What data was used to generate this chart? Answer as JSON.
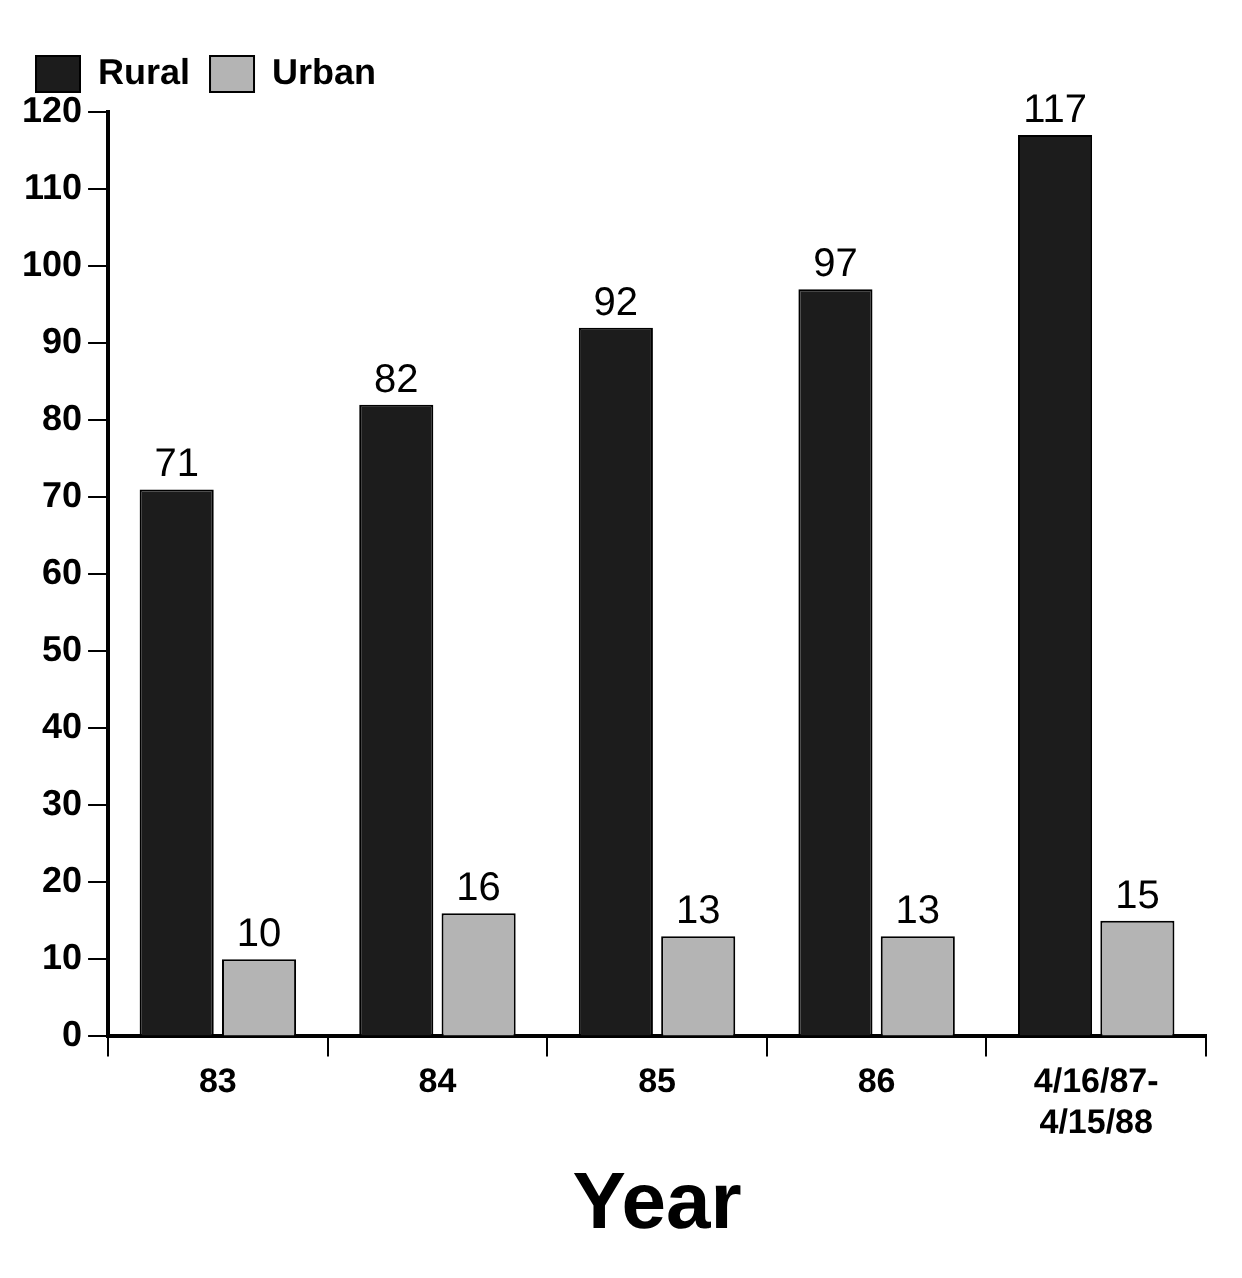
{
  "chart_data": {
    "type": "bar",
    "xlabel": "Year",
    "categories": [
      "83",
      "84",
      "85",
      "86",
      "4/16/87-\n4/15/88"
    ],
    "series": [
      {
        "name": "Rural",
        "color": "#1c1c1c",
        "values": [
          71,
          82,
          92,
          97,
          117
        ]
      },
      {
        "name": "Urban",
        "color": "#b4b4b4",
        "values": [
          10,
          16,
          13,
          13,
          15
        ]
      }
    ],
    "ylim": [
      0,
      120
    ],
    "yticks": [
      0,
      10,
      20,
      30,
      40,
      50,
      60,
      70,
      80,
      90,
      100,
      110,
      120
    ],
    "grid": false,
    "legend": "top left",
    "data_labels": true
  }
}
